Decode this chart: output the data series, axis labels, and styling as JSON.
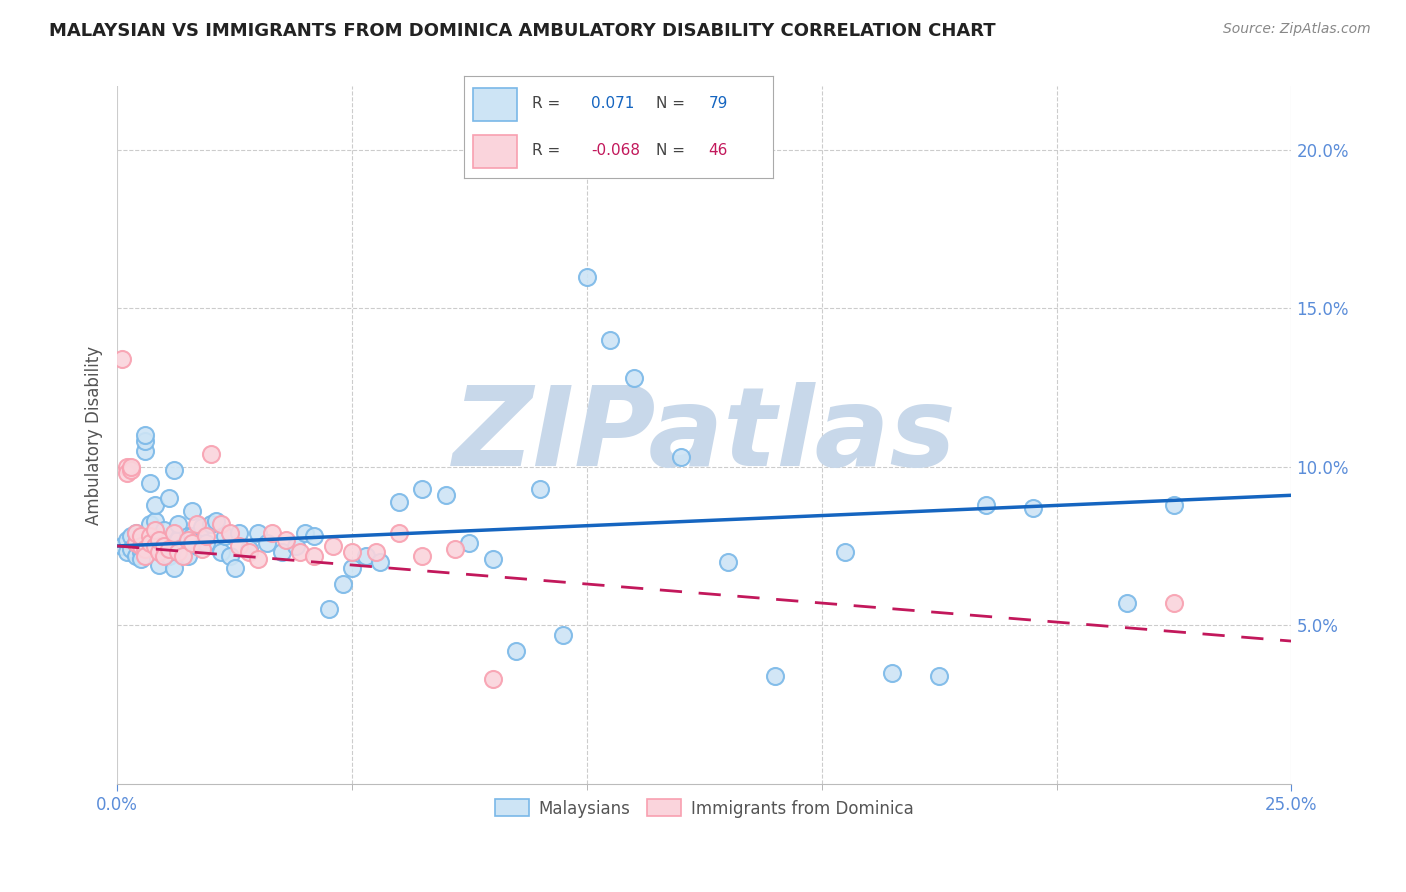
{
  "title": "MALAYSIAN VS IMMIGRANTS FROM DOMINICA AMBULATORY DISABILITY CORRELATION CHART",
  "source": "Source: ZipAtlas.com",
  "ylabel": "Ambulatory Disability",
  "xlim": [
    0.0,
    0.25
  ],
  "ylim": [
    0.0,
    0.22
  ],
  "xticks_minor": [
    0.05,
    0.1,
    0.15,
    0.2
  ],
  "xticks_endpoints": [
    0.0,
    0.25
  ],
  "yticks": [
    0.05,
    0.1,
    0.15,
    0.2
  ],
  "xticklabels_left": "0.0%",
  "xticklabels_right": "25.0%",
  "yticklabels": [
    "5.0%",
    "10.0%",
    "15.0%",
    "20.0%"
  ],
  "r_blue": 0.071,
  "n_blue": 79,
  "r_pink": -0.068,
  "n_pink": 46,
  "blue_scatter_face": "#cde4f5",
  "blue_scatter_edge": "#7ab8e8",
  "pink_scatter_face": "#fad4dc",
  "pink_scatter_edge": "#f8a0b0",
  "blue_line_color": "#1565c0",
  "pink_line_color": "#c2185b",
  "watermark": "ZIPatlas",
  "watermark_color": "#c8d8ea",
  "legend_blue_label": "Malaysians",
  "legend_pink_label": "Immigrants from Dominica",
  "tick_color": "#5b8dd9",
  "axis_label_color": "#555555",
  "malaysians_x": [
    0.001,
    0.002,
    0.002,
    0.003,
    0.003,
    0.004,
    0.004,
    0.004,
    0.005,
    0.005,
    0.005,
    0.006,
    0.006,
    0.006,
    0.007,
    0.007,
    0.007,
    0.008,
    0.008,
    0.008,
    0.009,
    0.009,
    0.01,
    0.01,
    0.01,
    0.011,
    0.011,
    0.012,
    0.012,
    0.013,
    0.013,
    0.014,
    0.015,
    0.015,
    0.016,
    0.016,
    0.017,
    0.018,
    0.019,
    0.02,
    0.021,
    0.022,
    0.023,
    0.024,
    0.025,
    0.026,
    0.028,
    0.03,
    0.032,
    0.035,
    0.038,
    0.04,
    0.042,
    0.045,
    0.048,
    0.05,
    0.053,
    0.056,
    0.06,
    0.065,
    0.07,
    0.075,
    0.08,
    0.085,
    0.09,
    0.095,
    0.1,
    0.105,
    0.11,
    0.12,
    0.13,
    0.14,
    0.155,
    0.165,
    0.175,
    0.185,
    0.195,
    0.215,
    0.225
  ],
  "malaysians_y": [
    0.075,
    0.073,
    0.077,
    0.078,
    0.074,
    0.076,
    0.072,
    0.079,
    0.075,
    0.073,
    0.071,
    0.105,
    0.108,
    0.11,
    0.078,
    0.082,
    0.095,
    0.076,
    0.083,
    0.088,
    0.074,
    0.069,
    0.077,
    0.075,
    0.08,
    0.072,
    0.09,
    0.099,
    0.068,
    0.077,
    0.082,
    0.075,
    0.072,
    0.078,
    0.086,
    0.078,
    0.075,
    0.081,
    0.076,
    0.082,
    0.083,
    0.073,
    0.078,
    0.072,
    0.068,
    0.079,
    0.074,
    0.079,
    0.076,
    0.073,
    0.075,
    0.079,
    0.078,
    0.055,
    0.063,
    0.068,
    0.072,
    0.07,
    0.089,
    0.093,
    0.091,
    0.076,
    0.071,
    0.042,
    0.093,
    0.047,
    0.16,
    0.14,
    0.128,
    0.103,
    0.07,
    0.034,
    0.073,
    0.035,
    0.034,
    0.088,
    0.087,
    0.057,
    0.088
  ],
  "dominica_x": [
    0.001,
    0.002,
    0.002,
    0.003,
    0.003,
    0.004,
    0.004,
    0.005,
    0.005,
    0.006,
    0.006,
    0.007,
    0.007,
    0.008,
    0.008,
    0.009,
    0.009,
    0.01,
    0.01,
    0.011,
    0.012,
    0.013,
    0.014,
    0.015,
    0.016,
    0.017,
    0.018,
    0.019,
    0.02,
    0.022,
    0.024,
    0.026,
    0.028,
    0.03,
    0.033,
    0.036,
    0.039,
    0.042,
    0.046,
    0.05,
    0.055,
    0.06,
    0.065,
    0.072,
    0.08,
    0.225
  ],
  "dominica_y": [
    0.134,
    0.1,
    0.098,
    0.099,
    0.1,
    0.076,
    0.079,
    0.075,
    0.078,
    0.074,
    0.072,
    0.078,
    0.076,
    0.075,
    0.08,
    0.073,
    0.077,
    0.075,
    0.072,
    0.074,
    0.079,
    0.073,
    0.072,
    0.077,
    0.076,
    0.082,
    0.074,
    0.078,
    0.104,
    0.082,
    0.079,
    0.075,
    0.073,
    0.071,
    0.079,
    0.077,
    0.073,
    0.072,
    0.075,
    0.073,
    0.073,
    0.079,
    0.072,
    0.074,
    0.033,
    0.057
  ]
}
